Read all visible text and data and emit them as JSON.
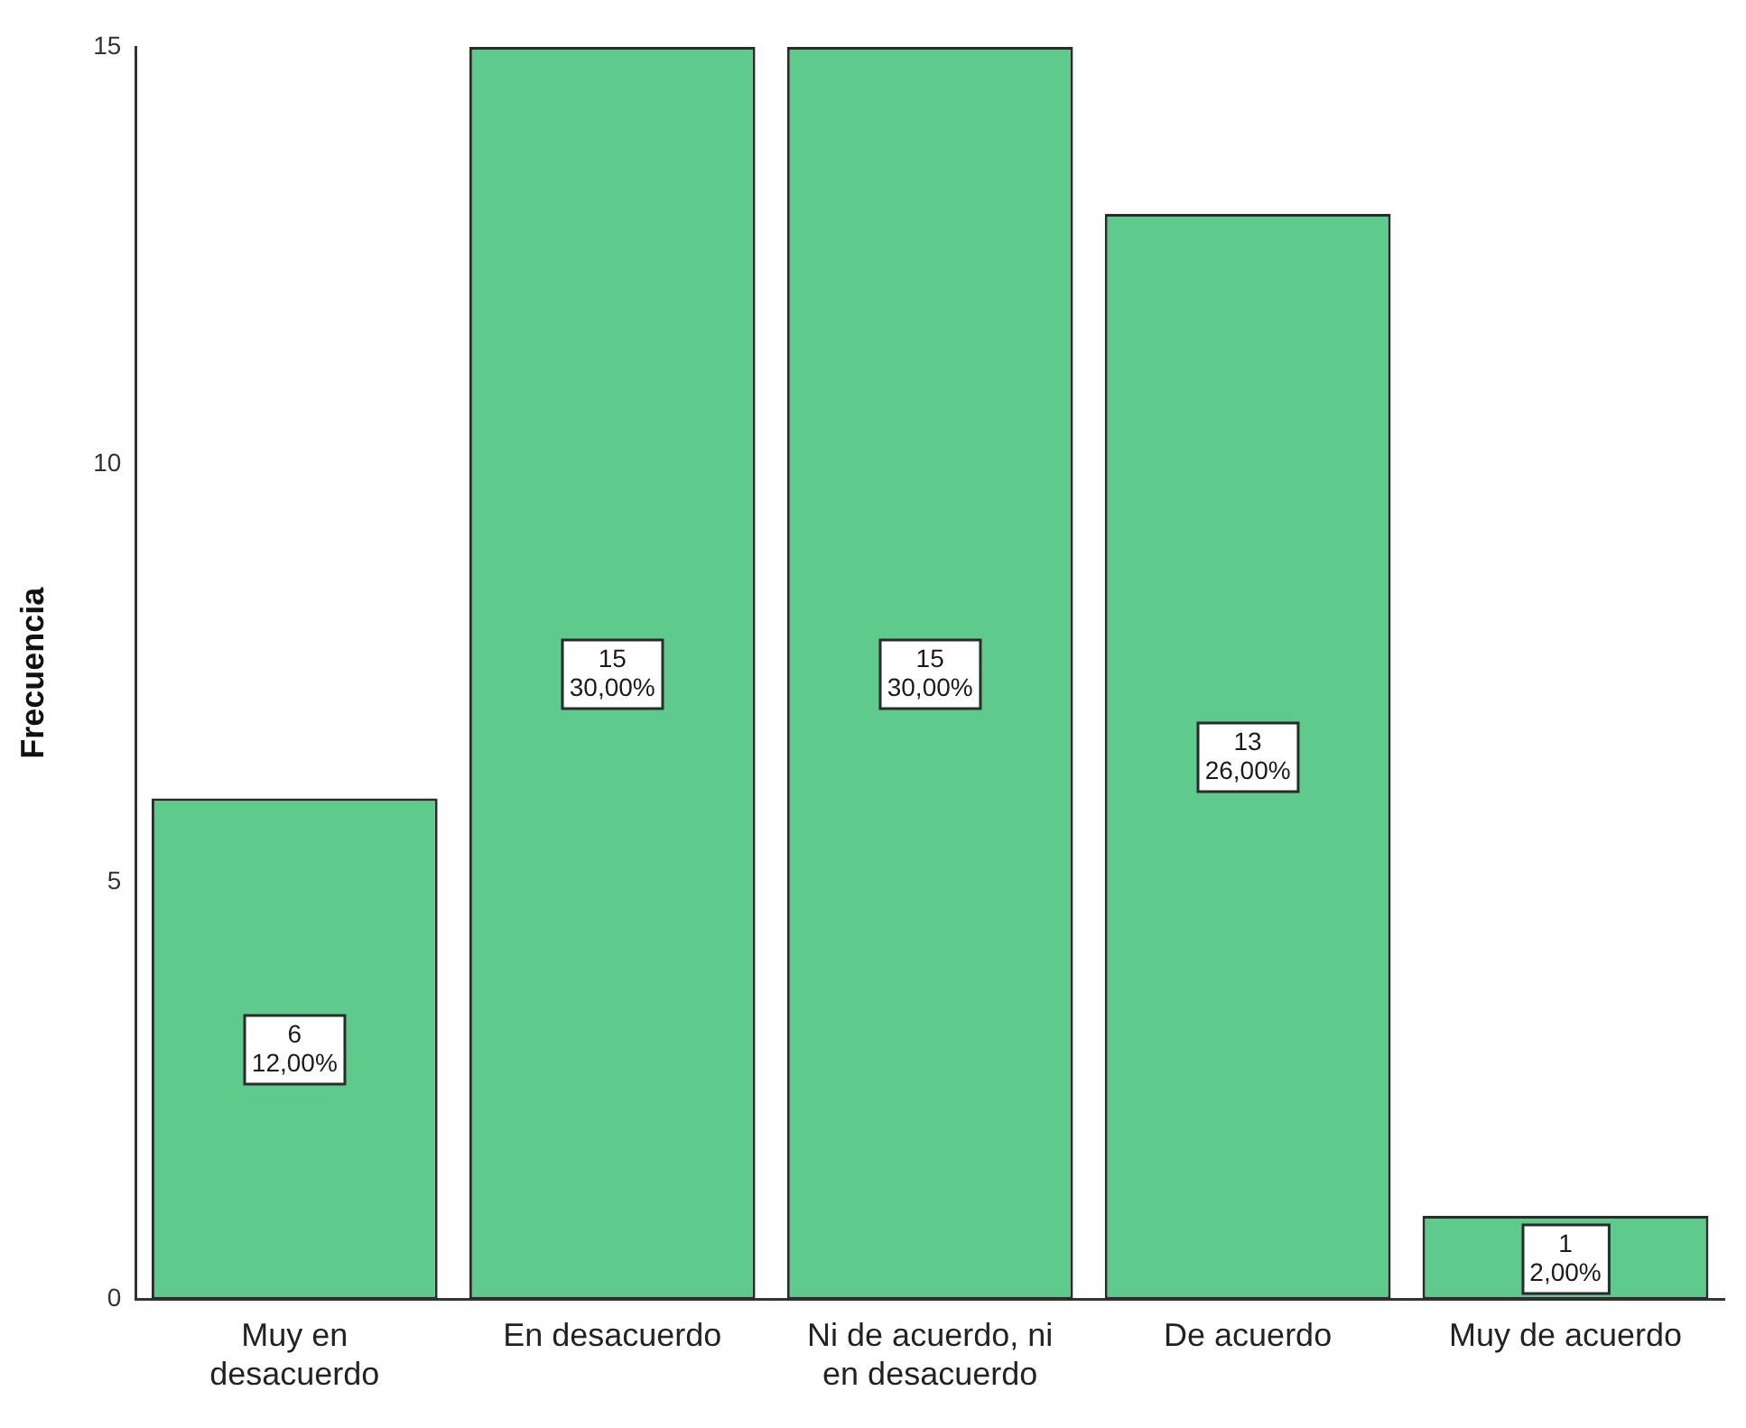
{
  "chart_data": {
    "type": "bar",
    "categories": [
      "Muy en desacuerdo",
      "En desacuerdo",
      "Ni de acuerdo, ni en desacuerdo",
      "De acuerdo",
      "Muy de acuerdo"
    ],
    "values": [
      6,
      15,
      15,
      13,
      1
    ],
    "color": "#5ecb8c",
    "ylabel": "Frecuencia",
    "ylim": [
      0,
      15
    ],
    "yticks": [
      0,
      5,
      10,
      15
    ],
    "grid": false,
    "legend": false,
    "value_labels": [
      "6\n12,00%",
      "15\n30,00%",
      "15\n30,00%",
      "13\n26,00%",
      "1\n2,00%"
    ]
  }
}
